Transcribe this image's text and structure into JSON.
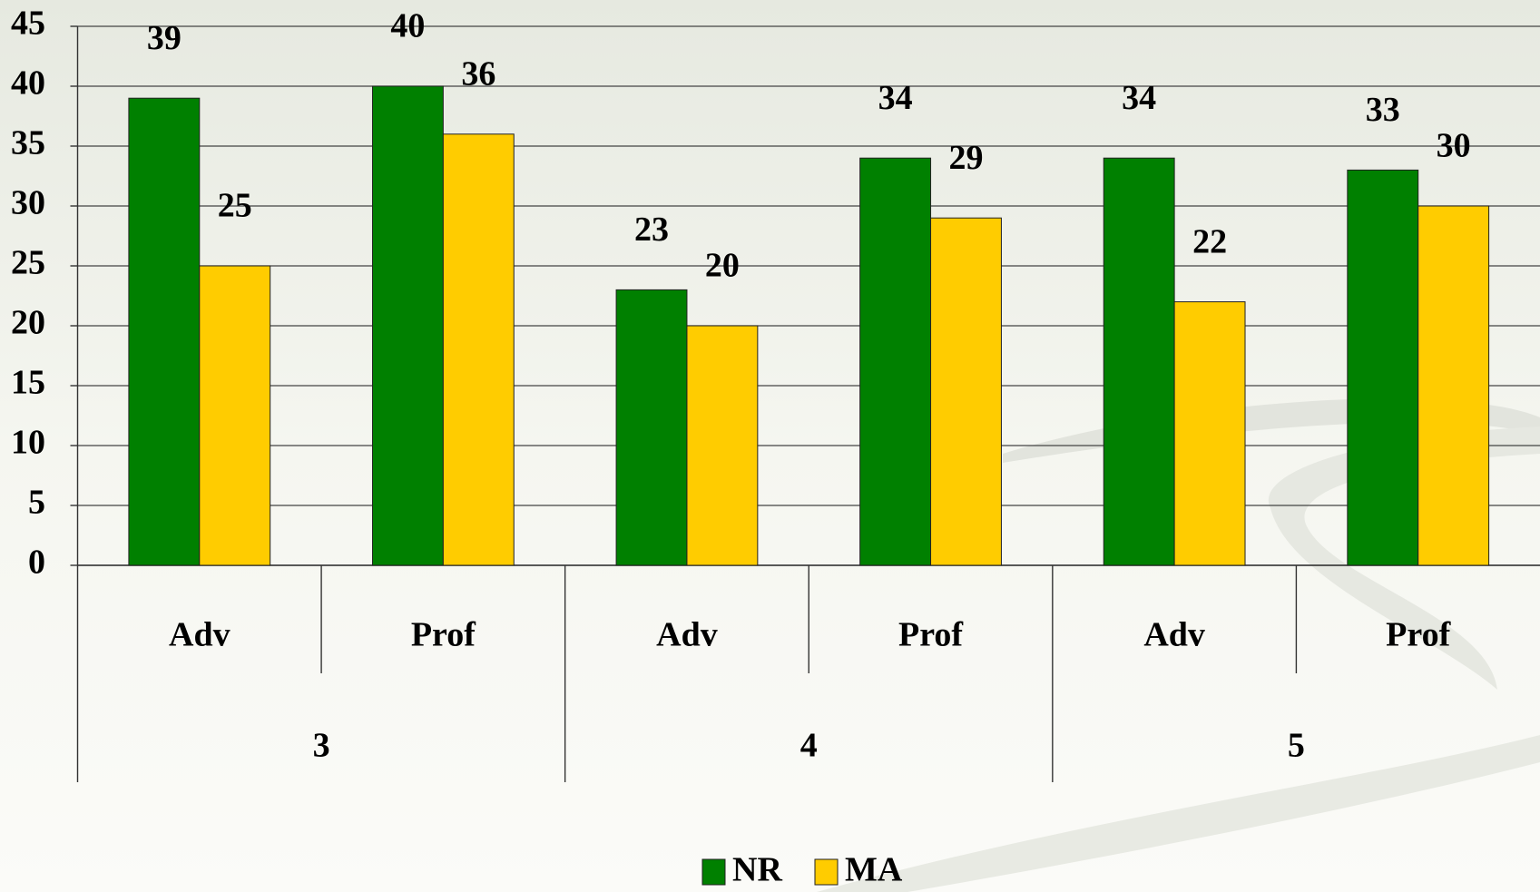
{
  "chart_data": {
    "type": "bar",
    "categories": [
      "Adv",
      "Prof",
      "Adv",
      "Prof",
      "Adv",
      "Prof"
    ],
    "groups": [
      "3",
      "4",
      "5"
    ],
    "series": [
      {
        "name": "NR",
        "color": "#008000",
        "values": [
          39,
          40,
          23,
          34,
          34,
          33
        ]
      },
      {
        "name": "MA",
        "color": "#ffcc00",
        "values": [
          25,
          36,
          20,
          29,
          22,
          30
        ]
      }
    ],
    "ylim": [
      0,
      45
    ],
    "yticks": [
      0,
      5,
      10,
      15,
      20,
      25,
      30,
      35,
      40,
      45
    ],
    "grid": true,
    "legend": "bottom"
  }
}
